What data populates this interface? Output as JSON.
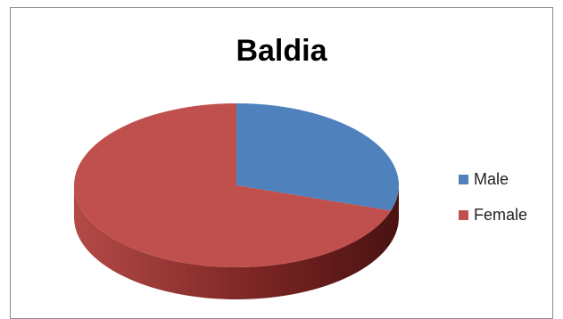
{
  "chart_data": {
    "type": "pie",
    "title": "Baldia",
    "categories": [
      "Male",
      "Female"
    ],
    "values": [
      30,
      70
    ],
    "colors": [
      "#4F81BD",
      "#C0504D"
    ],
    "legend_position": "right",
    "style": "3d"
  }
}
